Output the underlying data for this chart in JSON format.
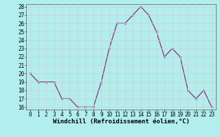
{
  "x": [
    0,
    1,
    2,
    3,
    4,
    5,
    6,
    7,
    8,
    9,
    10,
    11,
    12,
    13,
    14,
    15,
    16,
    17,
    18,
    19,
    20,
    21,
    22,
    23
  ],
  "y": [
    20,
    19,
    19,
    19,
    17,
    17,
    16,
    16,
    16,
    19,
    23,
    26,
    26,
    27,
    28,
    27,
    25,
    22,
    23,
    22,
    18,
    17,
    18,
    16
  ],
  "line_color": "#7b2f7b",
  "marker_color": "#7b2f7b",
  "bg_color": "#b2eeee",
  "grid_color": "#d0d0d0",
  "xlabel": "Windchill (Refroidissement éolien,°C)",
  "ylim_min": 16,
  "ylim_max": 28,
  "xlim_min": -0.5,
  "xlim_max": 23.5,
  "yticks": [
    16,
    17,
    18,
    19,
    20,
    21,
    22,
    23,
    24,
    25,
    26,
    27,
    28
  ],
  "xticks": [
    0,
    1,
    2,
    3,
    4,
    5,
    6,
    7,
    8,
    9,
    10,
    11,
    12,
    13,
    14,
    15,
    16,
    17,
    18,
    19,
    20,
    21,
    22,
    23
  ],
  "xlabel_fontsize": 6.5,
  "tick_fontsize": 5.5,
  "linewidth": 0.9,
  "markersize": 2.0
}
